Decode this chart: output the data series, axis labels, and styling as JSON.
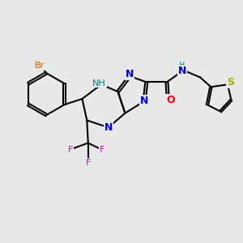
{
  "background_color": "#e8e8e8",
  "colors": {
    "N": "#0000cc",
    "O": "#ff0000",
    "S": "#aaaa00",
    "Br": "#cc6600",
    "F": "#cc00cc",
    "NH": "#008080",
    "C": "#000000"
  },
  "figsize": [
    3.0,
    3.0
  ],
  "dpi": 100,
  "lw": 1.5
}
